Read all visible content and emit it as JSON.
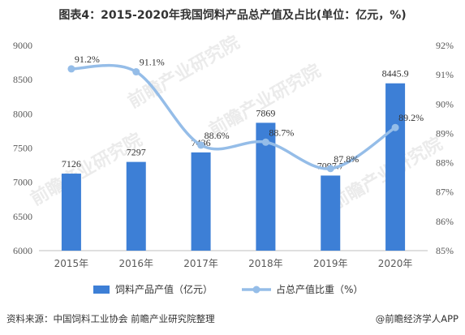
{
  "title": "图表4：2015-2020年我国饲料产品总产值及占比(单位：亿元，%)",
  "source": "资料来源：中国饲料工业协会 前瞻产业研究院整理",
  "brand": "@前瞻经济学人APP",
  "watermark": "前瞻产业研究院",
  "colors": {
    "bar": "#3d7fd6",
    "line": "#95bde8",
    "grid": "#d9d9d9"
  },
  "chart_data": {
    "type": "bar",
    "categories": [
      "2015年",
      "2016年",
      "2017年",
      "2018年",
      "2019年",
      "2020年"
    ],
    "series": [
      {
        "name": "饲料产品产值（亿元）",
        "type": "bar",
        "axis": "left",
        "values": [
          7126,
          7297,
          7436,
          7869,
          7097.7,
          8445.9
        ],
        "labels": [
          "7126",
          "7297",
          "7436",
          "7869",
          "7097.7",
          "8445.9"
        ]
      },
      {
        "name": "占总产值比重（%）",
        "type": "line",
        "axis": "right",
        "values": [
          91.2,
          91.1,
          88.6,
          88.7,
          87.8,
          89.2
        ],
        "labels": [
          "91.2%",
          "91.1%",
          "88.6%",
          "88.7%",
          "87.8%",
          "89.2%"
        ]
      }
    ],
    "left_axis": {
      "ylim": [
        6000,
        9000
      ],
      "ticks": [
        "6000",
        "6500",
        "7000",
        "7500",
        "8000",
        "8500",
        "9000"
      ]
    },
    "right_axis": {
      "ylim": [
        85,
        92
      ],
      "ticks": [
        "85%",
        "86%",
        "87%",
        "88%",
        "89%",
        "90%",
        "91%",
        "92%"
      ]
    },
    "grid": false,
    "legend": "bottom"
  }
}
